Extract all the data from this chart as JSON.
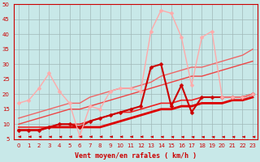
{
  "xlabel": "Vent moyen/en rafales ( km/h )",
  "background_color": "#c8e8e8",
  "grid_color": "#a0b8b8",
  "xlim": [
    -0.5,
    23.5
  ],
  "ylim": [
    5,
    50
  ],
  "yticks": [
    5,
    10,
    15,
    20,
    25,
    30,
    35,
    40,
    45,
    50
  ],
  "xticks": [
    0,
    1,
    2,
    3,
    4,
    5,
    6,
    7,
    8,
    9,
    10,
    11,
    12,
    13,
    14,
    15,
    16,
    17,
    18,
    19,
    20,
    21,
    22,
    23
  ],
  "lines": [
    {
      "x": [
        0,
        1,
        2,
        3,
        4,
        5,
        6,
        7,
        8,
        9,
        10,
        11,
        12,
        13,
        14,
        15,
        16,
        17,
        18,
        19,
        20,
        21,
        22,
        23
      ],
      "y": [
        8,
        8,
        8,
        9,
        9,
        9,
        9,
        9,
        9,
        10,
        11,
        12,
        13,
        14,
        15,
        15,
        16,
        16,
        17,
        17,
        17,
        18,
        18,
        19
      ],
      "color": "#dd0000",
      "lw": 2.0,
      "marker": null,
      "ms": 0,
      "zorder": 5
    },
    {
      "x": [
        0,
        1,
        2,
        3,
        4,
        5,
        6,
        7,
        8,
        9,
        10,
        11,
        12,
        13,
        14,
        15,
        16,
        17,
        18,
        19,
        20,
        21,
        22,
        23
      ],
      "y": [
        9,
        9,
        9,
        9,
        10,
        10,
        10,
        11,
        12,
        13,
        14,
        14,
        15,
        16,
        17,
        17,
        18,
        18,
        19,
        19,
        19,
        19,
        19,
        20
      ],
      "color": "#ee2222",
      "lw": 1.2,
      "marker": null,
      "ms": 0,
      "zorder": 4
    },
    {
      "x": [
        0,
        1,
        2,
        3,
        4,
        5,
        6,
        7,
        8,
        9,
        10,
        11,
        12,
        13,
        14,
        15,
        16,
        17,
        18,
        19,
        20,
        21,
        22,
        23
      ],
      "y": [
        10,
        11,
        12,
        13,
        14,
        15,
        15,
        16,
        17,
        18,
        19,
        20,
        21,
        22,
        23,
        24,
        25,
        26,
        26,
        27,
        28,
        29,
        30,
        31
      ],
      "color": "#ee4444",
      "lw": 1.0,
      "marker": null,
      "ms": 0,
      "zorder": 3
    },
    {
      "x": [
        0,
        1,
        2,
        3,
        4,
        5,
        6,
        7,
        8,
        9,
        10,
        11,
        12,
        13,
        14,
        15,
        16,
        17,
        18,
        19,
        20,
        21,
        22,
        23
      ],
      "y": [
        12,
        13,
        14,
        15,
        16,
        17,
        17,
        19,
        20,
        21,
        22,
        22,
        23,
        24,
        26,
        27,
        28,
        29,
        29,
        30,
        31,
        32,
        33,
        35
      ],
      "color": "#ee6666",
      "lw": 1.0,
      "marker": null,
      "ms": 0,
      "zorder": 2
    },
    {
      "x": [
        0,
        1,
        2,
        3,
        4,
        5,
        6,
        7,
        8,
        9,
        10,
        11,
        12,
        13,
        14,
        15,
        16,
        17,
        18,
        19,
        20,
        21,
        22,
        23
      ],
      "y": [
        8,
        8,
        8,
        9,
        10,
        10,
        9,
        11,
        12,
        13,
        14,
        15,
        16,
        29,
        30,
        16,
        23,
        14,
        19,
        19,
        19,
        19,
        19,
        20
      ],
      "color": "#cc0000",
      "lw": 1.5,
      "marker": "D",
      "ms": 2.5,
      "zorder": 6
    },
    {
      "x": [
        0,
        1,
        2,
        3,
        4,
        5,
        6,
        7,
        8,
        9,
        10,
        11,
        12,
        13,
        14,
        15,
        16,
        17,
        18,
        19,
        20,
        21,
        22,
        23
      ],
      "y": [
        17,
        18,
        22,
        27,
        21,
        17,
        6,
        16,
        15,
        21,
        22,
        22,
        21,
        41,
        48,
        47,
        39,
        23,
        39,
        41,
        19,
        19,
        19,
        20
      ],
      "color": "#ffaaaa",
      "lw": 1.0,
      "marker": "D",
      "ms": 2.5,
      "zorder": 7
    }
  ],
  "arrow_color": "#cc0000",
  "tick_color": "#cc0000",
  "label_fontsize": 5,
  "xlabel_fontsize": 6
}
